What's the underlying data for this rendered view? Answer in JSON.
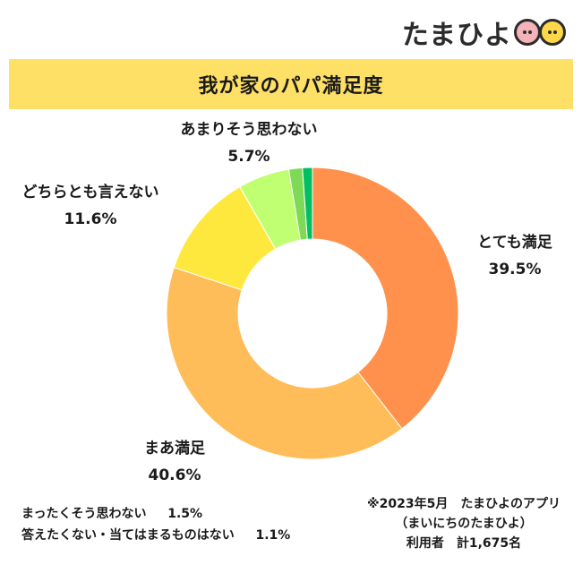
{
  "brand": {
    "logo_text": "たまひよ"
  },
  "chart_data": {
    "type": "pie",
    "title": "我が家のパパ満足度",
    "slices": [
      {
        "label": "とても満足",
        "value": 39.5,
        "display": "39.5%",
        "color": "#ff914d"
      },
      {
        "label": "まあ満足",
        "value": 40.6,
        "display": "40.6%",
        "color": "#ffbd59"
      },
      {
        "label": "どちらとも言えない",
        "value": 11.6,
        "display": "11.6%",
        "color": "#ffe83e"
      },
      {
        "label": "あまりそう思わない",
        "value": 5.7,
        "display": "5.7%",
        "color": "#c1ff72"
      },
      {
        "label": "まったくそう思わない",
        "value": 1.5,
        "display": "1.5%",
        "color": "#7ed957"
      },
      {
        "label": "答えたくない・当てはまるものはない",
        "value": 1.1,
        "display": "1.1%",
        "color": "#00bf63"
      }
    ],
    "start_angle_deg": 0,
    "direction": "clockwise",
    "donut": true
  },
  "notes": [
    {
      "label": "まったくそう思わない",
      "value": "1.5%"
    },
    {
      "label": "答えたくない・当てはまるものはない",
      "value": "1.1%"
    }
  ],
  "source": {
    "line1": "※2023年5月　たまひよのアプリ",
    "line2": "（まいにちのたまひよ）",
    "line3": "利用者　計1,675名"
  }
}
